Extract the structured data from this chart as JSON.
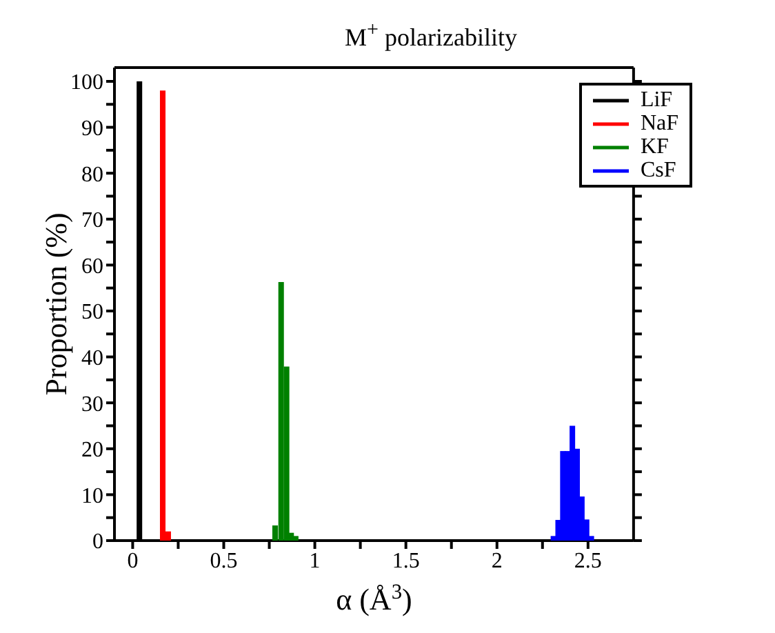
{
  "chart_data": {
    "type": "bar",
    "title": "M$^{+}$ polarizability",
    "xlabel": "α (Å$^{3}$)",
    "ylabel": "Proportion (%)",
    "legend": "top right",
    "xlim": [
      -0.1,
      2.75
    ],
    "ylim": [
      0,
      103
    ],
    "xticks": [
      0,
      {
        "value": 0.25,
        "label": null
      },
      0.5,
      {
        "value": 0.75,
        "label": null
      },
      1,
      {
        "value": 1.25,
        "label": null
      },
      1.5,
      {
        "value": 1.75,
        "label": null
      },
      2,
      {
        "value": 2.25,
        "label": null
      },
      2.5
    ],
    "yticks": [
      0,
      {
        "value": 5,
        "label": null
      },
      10,
      {
        "value": 15,
        "label": null
      },
      20,
      {
        "value": 25,
        "label": null
      },
      30,
      {
        "value": 35,
        "label": null
      },
      40,
      {
        "value": 45,
        "label": null
      },
      50,
      {
        "value": 55,
        "label": null
      },
      60,
      {
        "value": 65,
        "label": null
      },
      70,
      {
        "value": 75,
        "label": null
      },
      80,
      {
        "value": 85,
        "label": null
      },
      90,
      {
        "value": 95,
        "label": null
      },
      100
    ],
    "series": [
      {
        "name": "LiF",
        "color": "#000000",
        "x": [
          0.037
        ],
        "values": [
          100
        ]
      },
      {
        "name": "NaF",
        "color": "#ff0000",
        "x": [
          0.165,
          0.195
        ],
        "values": [
          98,
          2
        ]
      },
      {
        "name": "KF",
        "color": "#008000",
        "x": [
          0.782,
          0.815,
          0.845,
          0.87,
          0.895
        ],
        "values": [
          3.3,
          56.3,
          37.9,
          1.7,
          1
        ]
      },
      {
        "name": "CsF",
        "color": "#0000ff",
        "x": [
          2.31,
          2.336,
          2.362,
          2.388,
          2.414,
          2.44,
          2.466,
          2.492,
          2.518
        ],
        "values": [
          1,
          4.5,
          19.5,
          19.5,
          25,
          20,
          9.6,
          4.6,
          1
        ]
      }
    ]
  }
}
